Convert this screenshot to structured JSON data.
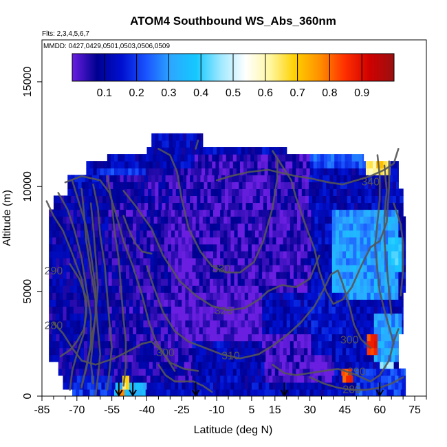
{
  "chart_data": {
    "type": "heatmap",
    "title": "ATOM4 Southbound WS_Abs_360nm",
    "subtitle_lines": [
      "Flts: 2,3,4,5,6,7",
      "MMDD: 0427,0429,0501,0503,0506,0509"
    ],
    "xlabel": "Latitude (deg N)",
    "ylabel": "Altitude (m)",
    "xlim": [
      -85,
      80
    ],
    "ylim": [
      0,
      17000
    ],
    "x_ticks": [
      -85,
      -70,
      -55,
      -40,
      -25,
      -10,
      5,
      15,
      30,
      45,
      60,
      75
    ],
    "x_minor_ticks": [
      -80,
      -75,
      -65,
      -60,
      -50,
      -45,
      -35,
      -30,
      -20,
      -15,
      -5,
      0,
      10,
      20,
      25,
      35,
      40,
      50,
      55,
      65,
      70,
      80
    ],
    "y_ticks": [
      0,
      5000,
      10000,
      15000
    ],
    "colorbar": {
      "ticks": [
        0.1,
        0.2,
        0.3,
        0.4,
        0.5,
        0.6,
        0.7,
        0.8,
        0.9
      ],
      "range": [
        0,
        1
      ],
      "palette": [
        "#6a1fe0",
        "#000090",
        "#0010d0",
        "#1a55ff",
        "#2ca8ff",
        "#14c8ff",
        "#9fe8ff",
        "#ffffff",
        "#fff7a0",
        "#ffd000",
        "#ff9000",
        "#ff3000",
        "#d00000",
        "#9a1010"
      ]
    },
    "contour_labels": [
      {
        "text": "340",
        "lat": 56,
        "alt": 10250
      },
      {
        "text": "330",
        "lat": -8,
        "alt": 6100
      },
      {
        "text": "320",
        "lat": -7,
        "alt": 4100
      },
      {
        "text": "310",
        "lat": -4,
        "alt": 1950
      },
      {
        "text": "300",
        "lat": -32,
        "alt": 2100
      },
      {
        "text": "300",
        "lat": 47,
        "alt": 2700
      },
      {
        "text": "290",
        "lat": -80,
        "alt": 6000
      },
      {
        "text": "290",
        "lat": 50,
        "alt": 1200
      },
      {
        "text": "280",
        "lat": -80,
        "alt": 3400
      },
      {
        "text": "280",
        "lat": 48,
        "alt": 350
      }
    ],
    "profile_markers_lat": [
      -52,
      -46,
      -19,
      19,
      60
    ],
    "regions": [
      {
        "lat0": -82,
        "lat1": -57,
        "alt0": 500,
        "alt1": 9500,
        "value": 0.09
      },
      {
        "lat0": -57,
        "lat1": -20,
        "alt0": 500,
        "alt1": 11000,
        "value": 0.06
      },
      {
        "lat0": -30,
        "lat1": 10,
        "alt0": 2500,
        "alt1": 9000,
        "value": 0.01
      },
      {
        "lat0": -20,
        "lat1": 30,
        "alt0": 5000,
        "alt1": 11600,
        "value": 0.04
      },
      {
        "lat0": 10,
        "lat1": 40,
        "alt0": 500,
        "alt1": 3000,
        "value": 0.02
      },
      {
        "lat0": 40,
        "lat1": 68,
        "alt0": 4500,
        "alt1": 9000,
        "value": 0.3
      },
      {
        "lat0": 30,
        "lat1": 45,
        "alt0": 2000,
        "alt1": 5000,
        "value": 0.14
      },
      {
        "lat0": 57,
        "lat1": 70,
        "alt0": 1500,
        "alt1": 4000,
        "value": 0.3
      },
      {
        "lat0": 50,
        "lat1": 72,
        "alt0": 0,
        "alt1": 1200,
        "value": 0.2
      },
      {
        "lat0": -72,
        "lat1": -55,
        "alt0": 0,
        "alt1": 1000,
        "value": 0.18
      },
      {
        "lat0": -54,
        "lat1": -40,
        "alt0": 0,
        "alt1": 800,
        "value": 0.35
      },
      {
        "lat0": 30,
        "lat1": 55,
        "alt0": 10800,
        "alt1": 11700,
        "value": 0.22
      },
      {
        "lat0": -60,
        "lat1": -40,
        "alt0": 10500,
        "alt1": 11000,
        "value": 0.2
      }
    ],
    "hotspots": [
      {
        "lat0": 54,
        "lat1": 64,
        "alt0": 10700,
        "alt1": 11600,
        "value": 0.62
      },
      {
        "lat0": 58,
        "lat1": 62,
        "alt0": 10800,
        "alt1": 11400,
        "value": 0.72
      },
      {
        "lat0": 55,
        "lat1": 59,
        "alt0": 2000,
        "alt1": 2900,
        "value": 0.85
      },
      {
        "lat0": 44,
        "lat1": 48,
        "alt0": 800,
        "alt1": 1200,
        "value": 0.85
      },
      {
        "lat0": -50,
        "lat1": -47,
        "alt0": 300,
        "alt1": 900,
        "value": 0.68
      },
      {
        "lat0": -52,
        "lat1": -50,
        "alt0": 0,
        "alt1": 400,
        "value": 0.75
      },
      {
        "lat0": 60,
        "lat1": 66,
        "alt0": 1400,
        "alt1": 1800,
        "value": 0.45
      },
      {
        "lat0": 63,
        "lat1": 70,
        "alt0": 6000,
        "alt1": 7500,
        "value": 0.38
      }
    ]
  }
}
